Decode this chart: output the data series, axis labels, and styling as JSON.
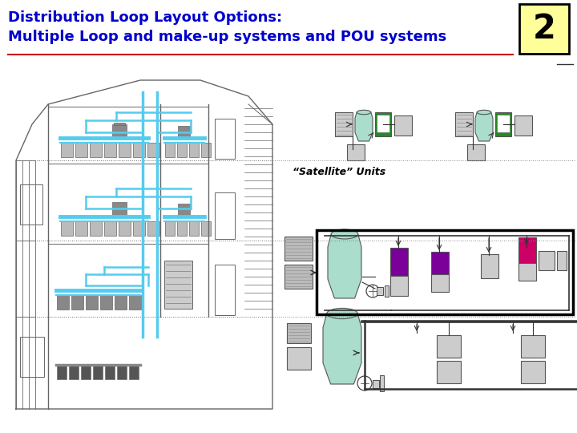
{
  "title_line1": "Distribution Loop Layout Options:",
  "title_line2": "Multiple Loop and make-up systems and POU systems",
  "title_color": "#0000CC",
  "title_fontsize": 13,
  "slide_number": "2",
  "slide_num_bg": "#FFFF99",
  "slide_num_border": "#000000",
  "bg_color": "#FFFFFF",
  "satellite_label": "“Satellite” Units",
  "building_color": "#666666",
  "pipe_color": "#55CCEE",
  "separator_color": "#CC0000"
}
